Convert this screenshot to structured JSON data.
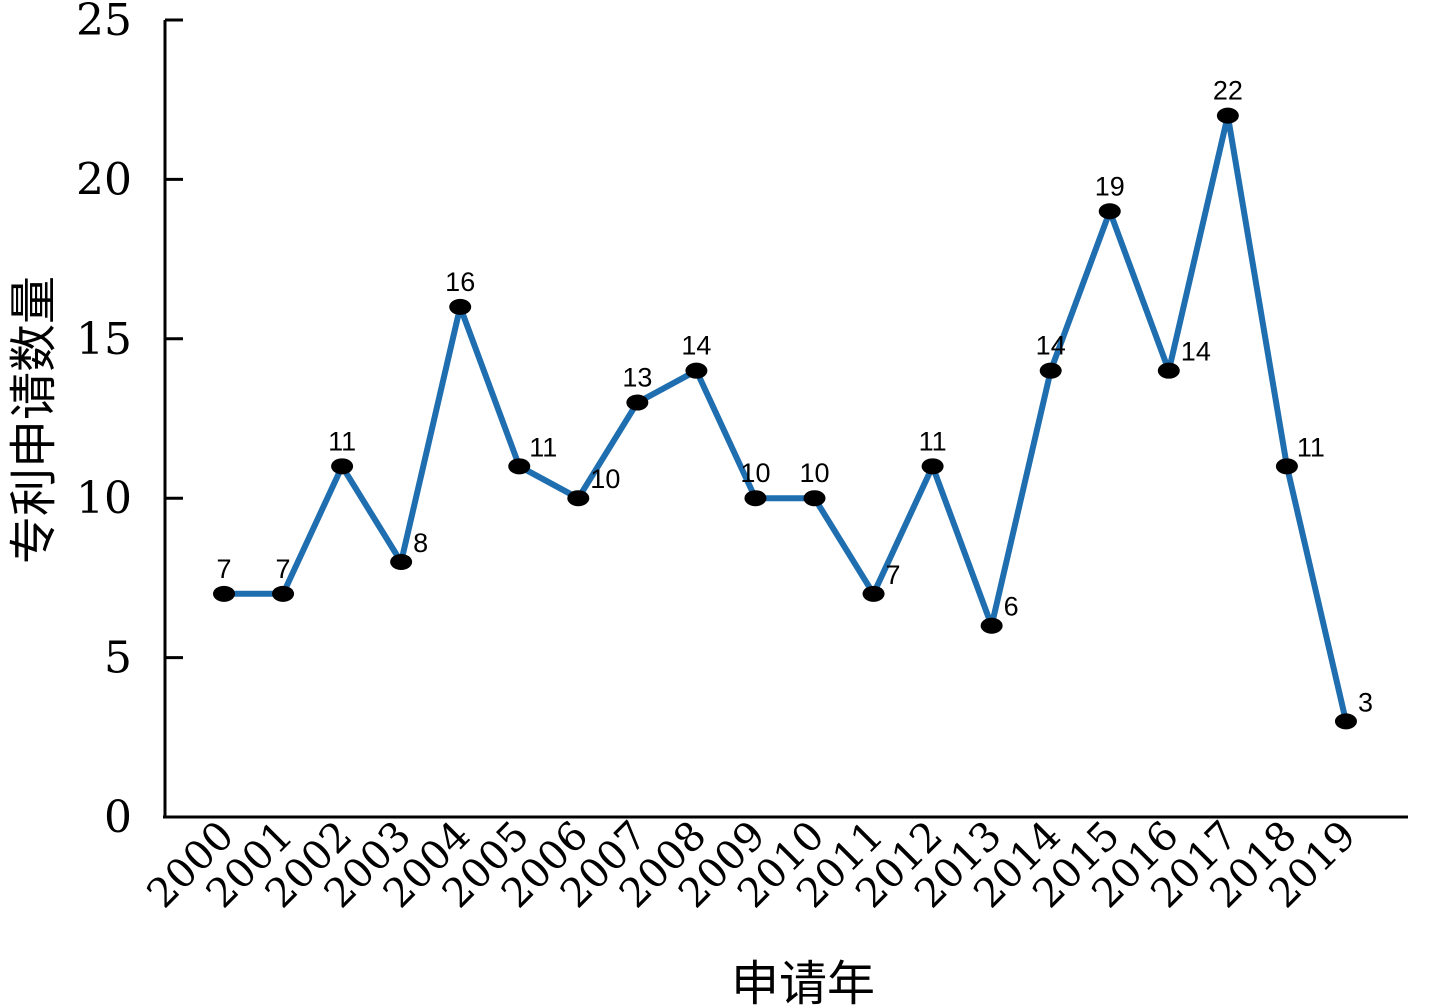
{
  "chart_data": {
    "type": "line",
    "title": "",
    "xlabel": "申请年",
    "ylabel": "专利申请数量",
    "categories": [
      "2000",
      "2001",
      "2002",
      "2003",
      "2004",
      "2005",
      "2006",
      "2007",
      "2008",
      "2009",
      "2010",
      "2011",
      "2012",
      "2013",
      "2014",
      "2015",
      "2016",
      "2017",
      "2018",
      "2019"
    ],
    "series": [
      {
        "values": [
          7,
          7,
          11,
          8,
          16,
          11,
          10,
          13,
          14,
          10,
          10,
          7,
          11,
          6,
          14,
          19,
          14,
          22,
          11,
          3
        ],
        "color": "#1f6eb0",
        "marker_color": "#000000"
      }
    ],
    "yticks": [
      "0",
      "5",
      "10",
      "15",
      "20",
      "25"
    ],
    "ylim": [
      0,
      25
    ],
    "grid": false,
    "legend": "none",
    "data_labels": true
  }
}
